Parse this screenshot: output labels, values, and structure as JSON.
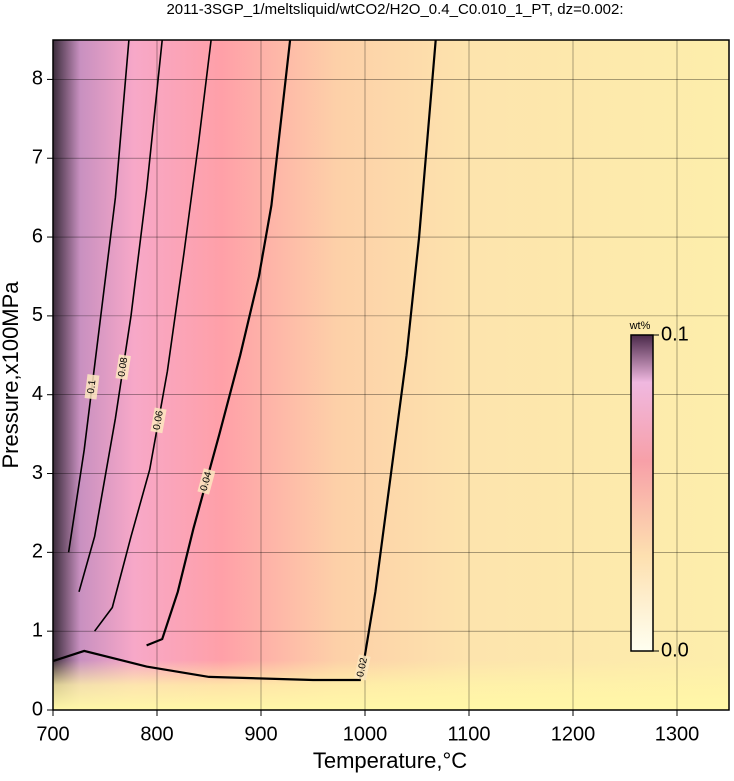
{
  "chart_data": {
    "type": "contour",
    "title": "2011-3SGP_1/meltsliquid/wtCO2/H2O_0.4_C0.010_1_PT, dz=0.002:",
    "x_label": "Temperature,°C",
    "y_label": "Pressure,x100MPa",
    "xlim": [
      700,
      1350
    ],
    "xticks": [
      700,
      800,
      900,
      1000,
      1100,
      1200,
      1300
    ],
    "ylim": [
      0,
      8.5
    ],
    "yticks": [
      0,
      1,
      2,
      3,
      4,
      5,
      6,
      7,
      8
    ],
    "grid": true,
    "contours": [
      {
        "level": 0.02,
        "x": [
          700,
          730,
          790,
          850,
          950,
          995,
          1000,
          1010,
          1025,
          1040,
          1052,
          1068
        ],
        "y": [
          0.62,
          0.75,
          0.55,
          0.42,
          0.38,
          0.38,
          0.7,
          1.5,
          3,
          4.5,
          6,
          8.5
        ]
      },
      {
        "level": 0.04,
        "x": [
          790,
          805,
          820,
          835,
          860,
          880,
          898,
          910,
          928
        ],
        "y": [
          0.82,
          0.9,
          1.5,
          2.3,
          3.5,
          4.5,
          5.5,
          6.4,
          8.5
        ]
      },
      {
        "level": 0.06,
        "x": [
          740,
          757,
          775,
          793,
          810,
          826,
          840,
          852
        ],
        "y": [
          1.0,
          1.3,
          2.2,
          3.05,
          4.3,
          5.8,
          7.2,
          8.5
        ]
      },
      {
        "level": 0.08,
        "x": [
          725,
          740,
          760,
          775,
          790,
          805
        ],
        "y": [
          1.5,
          2.2,
          3.7,
          5.0,
          6.6,
          8.5
        ]
      },
      {
        "level": 0.1,
        "x": [
          715,
          730,
          745,
          760,
          773
        ],
        "y": [
          2.0,
          3.3,
          4.9,
          6.5,
          8.5
        ]
      }
    ],
    "colorbar": {
      "label": "wt%",
      "lim": [
        0,
        0.1
      ],
      "ticks": [
        {
          "value": 0,
          "label": "0.0"
        },
        0.1
      ]
    }
  }
}
